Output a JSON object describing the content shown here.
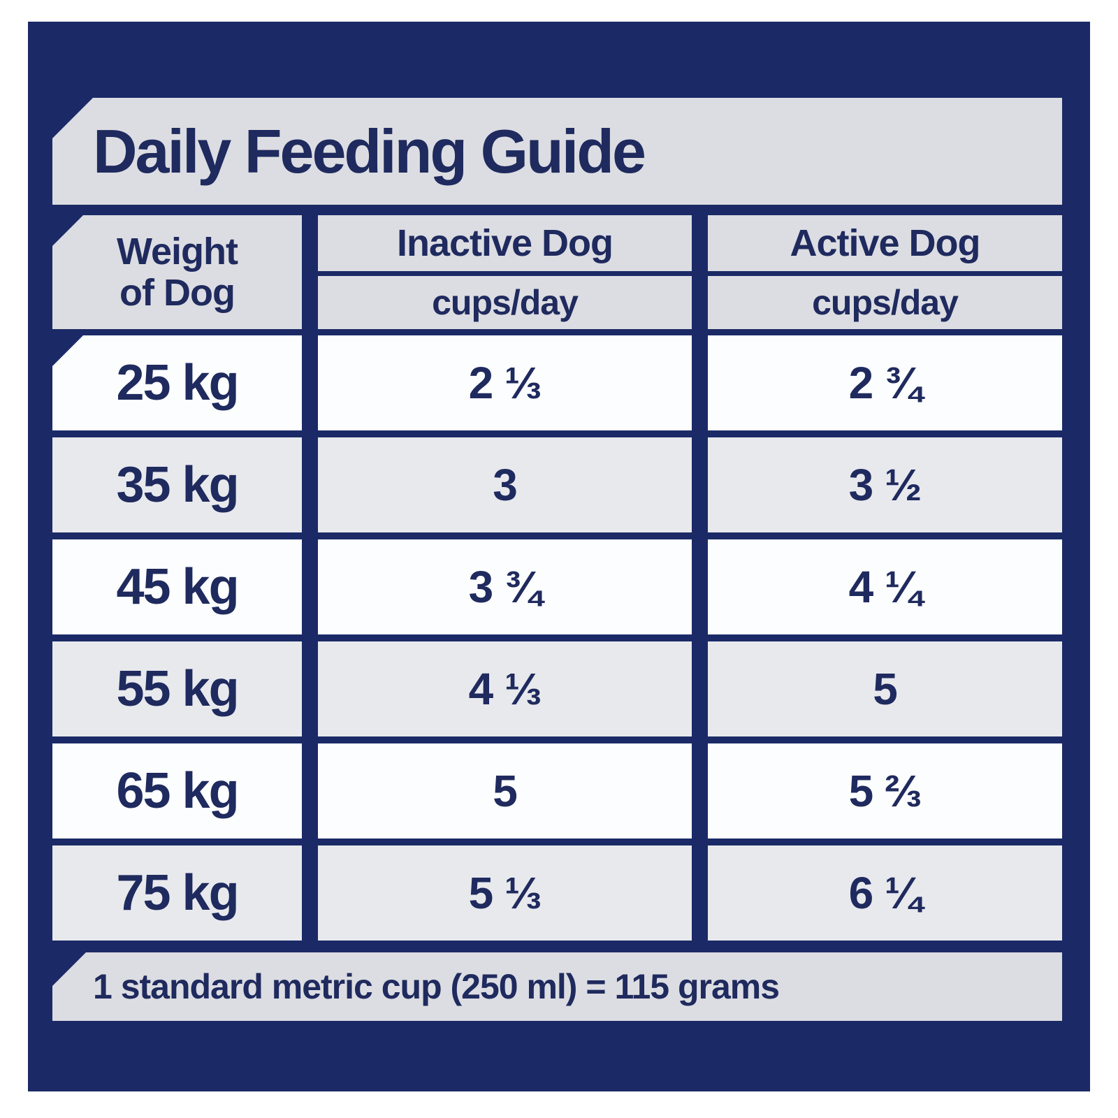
{
  "title": "Daily Feeding Guide",
  "table": {
    "weight_header": {
      "line1": "Weight",
      "line2": "of Dog"
    },
    "inactive_header": "Inactive Dog",
    "active_header": "Active Dog",
    "inactive_unit": "cups/day",
    "active_unit": "cups/day",
    "rows": [
      {
        "weight": "25 kg",
        "inactive": "2 ⅓",
        "active": "2 ¾"
      },
      {
        "weight": "35 kg",
        "inactive": "3",
        "active": "3 ½"
      },
      {
        "weight": "45 kg",
        "inactive": "3 ¾",
        "active": "4 ¼"
      },
      {
        "weight": "55 kg",
        "inactive": "4 ⅓",
        "active": "5"
      },
      {
        "weight": "65 kg",
        "inactive": "5",
        "active": "5 ⅔"
      },
      {
        "weight": "75 kg",
        "inactive": "5 ⅓",
        "active": "6 ¼"
      }
    ]
  },
  "footer_note": "1 standard metric cup (250 ml) = 115 grams",
  "colors": {
    "panel_navy": "#1b2a66",
    "text_navy": "#1f2a5e",
    "banner_gray": "#dcdde2",
    "row_white": "#fcfdfe",
    "row_alt_gray": "#e8e9ed"
  },
  "chart_data": {
    "type": "table",
    "title": "Daily Feeding Guide",
    "columns": [
      "Weight of Dog",
      "Inactive Dog (cups/day)",
      "Active Dog (cups/day)"
    ],
    "rows": [
      [
        "25 kg",
        "2 ⅓",
        "2 ¾"
      ],
      [
        "35 kg",
        "3",
        "3 ½"
      ],
      [
        "45 kg",
        "3 ¾",
        "4 ¼"
      ],
      [
        "55 kg",
        "4 ⅓",
        "5"
      ],
      [
        "65 kg",
        "5",
        "5 ⅔"
      ],
      [
        "75 kg",
        "5 ⅓",
        "6 ¼"
      ]
    ],
    "footnote": "1 standard metric cup (250 ml) = 115 grams"
  }
}
